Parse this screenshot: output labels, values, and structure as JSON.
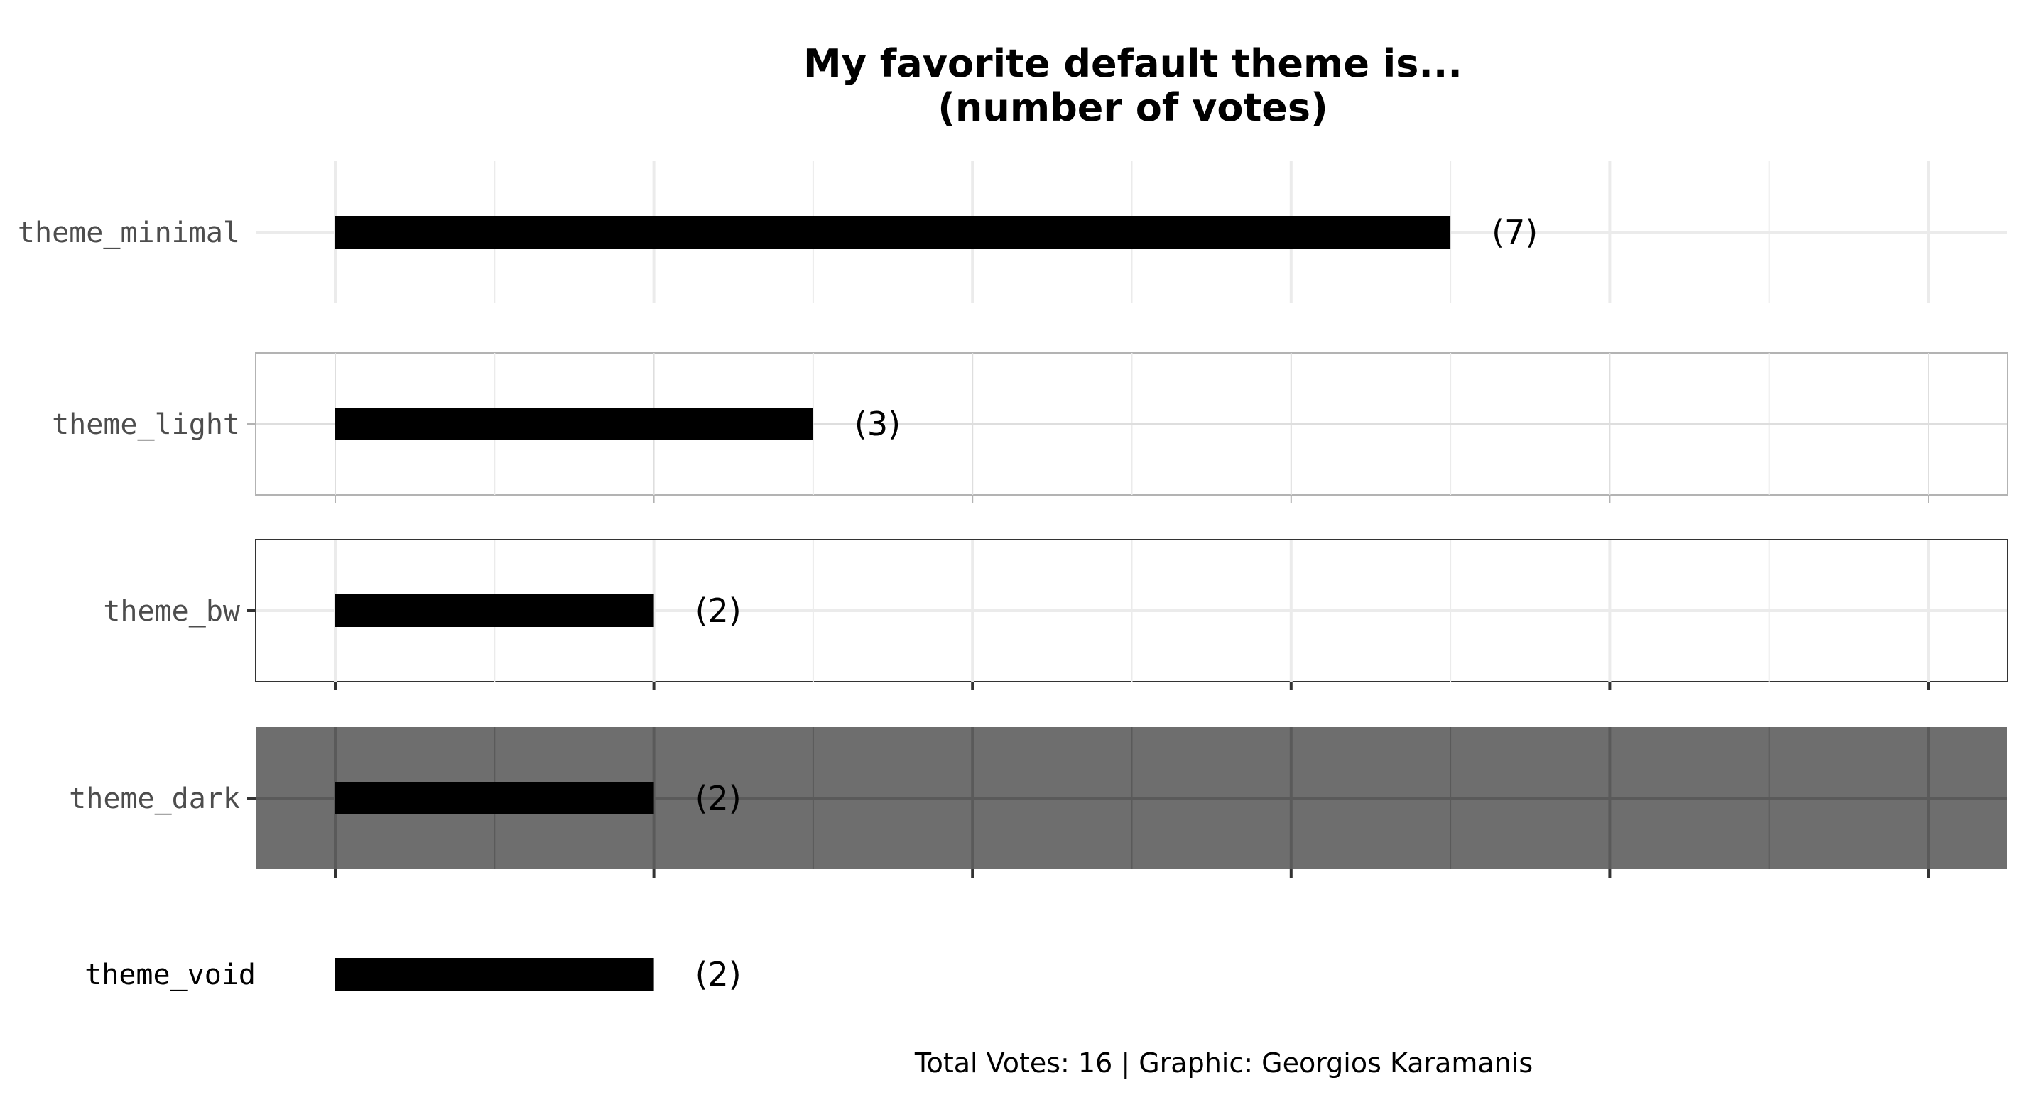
{
  "chart_data": {
    "type": "bar",
    "orientation": "horizontal",
    "title_line1": "My favorite default theme is...",
    "title_line2": "(number of votes)",
    "caption": "Total Votes: 16 | Graphic: Georgios Karamanis",
    "xlim": [
      0,
      10
    ],
    "categories": [
      "theme_minimal",
      "theme_light",
      "theme_bw",
      "theme_dark",
      "theme_void"
    ],
    "values": [
      7,
      3,
      2,
      2,
      2
    ],
    "value_labels": [
      "(7)",
      "(3)",
      "(2)",
      "(2)",
      "(2)"
    ],
    "bar_color": "#000000",
    "panel_styles": [
      "minimal",
      "light",
      "bw",
      "dark",
      "void"
    ],
    "colors": {
      "grid_light": "#ebebeb",
      "grid_mid": "#dedede",
      "light_border": "#b3b3b3",
      "bw_border": "#333333",
      "dark_panel": "#6e6e6e",
      "dark_grid": "#5a5a5a"
    }
  }
}
